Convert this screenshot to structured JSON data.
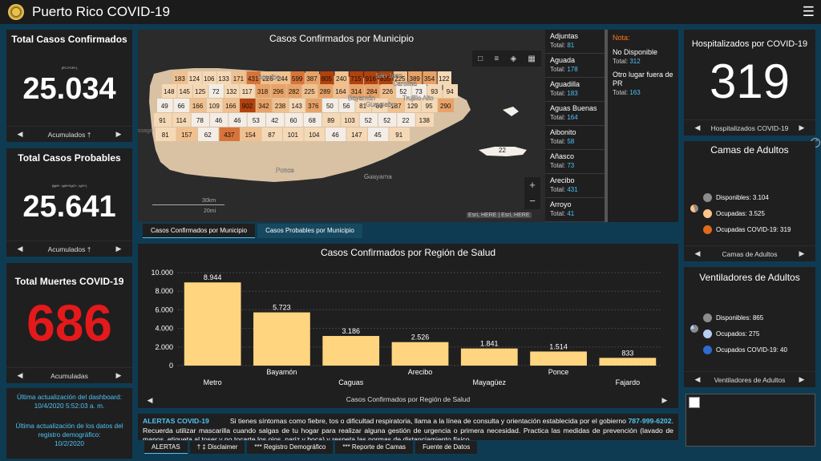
{
  "header": {
    "title": "Puerto Rico COVID-19",
    "seal_icon": "seal-icon",
    "menu_icon": "hamburger-menu-icon"
  },
  "kpis": {
    "confirmados": {
      "title": "Total Casos Confirmados",
      "sub": "(RT-PCR+)",
      "value": "25.034",
      "nav_label": "Acumulados †",
      "color": "#ffffff"
    },
    "probables": {
      "title": "Total Casos Probables",
      "sub": "(IgM+, IgM+/IgG+, IgG+)",
      "value": "25.641",
      "nav_label": "Acumulados †",
      "color": "#ffffff"
    },
    "muertes": {
      "title": "Total Muertes COVID-19",
      "value": "686",
      "nav_label": "Acumuladas",
      "color": "#e4191b"
    }
  },
  "update": {
    "dashboard_label": "Última actualización del dashboard:",
    "dashboard_date": "10/4/2020 5:52:03 a. m.",
    "registry_label": "Última actualización de los datos del registro demográfico:",
    "registry_date": "10/2/2020"
  },
  "map": {
    "title": "Casos Confirmados por Municipio",
    "attribution": "Esri, HERE | Esri, HERE",
    "scale_km": "30km",
    "scale_mi": "20mi",
    "ghost_text": "ssage",
    "place_labels": [
      "San Juan",
      "Carolina",
      "Bayamón",
      "Guaynabo",
      "Trujillo Alto",
      "Arecibo",
      "Ponce",
      "Guayama"
    ],
    "region_values": [
      "183",
      "124",
      "106",
      "133",
      "171",
      "431",
      "226",
      "244",
      "599",
      "387",
      "805",
      "240",
      "715",
      "916",
      "835",
      "225",
      "389",
      "354",
      "122",
      "148",
      "145",
      "125",
      "72",
      "132",
      "117",
      "318",
      "296",
      "282",
      "225",
      "289",
      "164",
      "314",
      "284",
      "226",
      "52",
      "73",
      "93",
      "94",
      "49",
      "66",
      "166",
      "109",
      "166",
      "902",
      "342",
      "238",
      "143",
      "376",
      "50",
      "56",
      "81",
      "89",
      "187",
      "129",
      "95",
      "290",
      "91",
      "114",
      "78",
      "46",
      "46",
      "53",
      "42",
      "60",
      "68",
      "89",
      "103",
      "52",
      "52",
      "22",
      "138",
      "81",
      "157",
      "62",
      "437",
      "154",
      "87",
      "101",
      "104",
      "46",
      "147",
      "45",
      "91"
    ]
  },
  "municipios": [
    {
      "name": "Adjuntas",
      "total": "81"
    },
    {
      "name": "Aguada",
      "total": "178"
    },
    {
      "name": "Aguadilla",
      "total": "183"
    },
    {
      "name": "Aguas Buenas",
      "total": "164"
    },
    {
      "name": "Aibonito",
      "total": "58"
    },
    {
      "name": "Añasco",
      "total": "73"
    },
    {
      "name": "Arecibo",
      "total": "431"
    },
    {
      "name": "Arroyo",
      "total": "41"
    }
  ],
  "total_prefix": "Total:",
  "nota": {
    "title": "Nota:",
    "items": [
      {
        "label": "No Disponible",
        "total": "312"
      },
      {
        "label": "Otro lugar fuera de PR",
        "total": "163"
      }
    ]
  },
  "map_tabs": [
    "Casos Confirmados por Municipio",
    "Casos Probables por Municipio"
  ],
  "chart_data": {
    "type": "bar",
    "title": "Casos Confirmados por Región de Salud",
    "xlabel": "Casos Confirmados por Región de Salud",
    "categories": [
      "Metro",
      "Bayamón",
      "Caguas",
      "Arecibo",
      "Mayagüez",
      "Ponce",
      "Fajardo"
    ],
    "values": [
      8944,
      5723,
      3186,
      2526,
      1841,
      1514,
      833
    ],
    "value_labels": [
      "8.944",
      "5.723",
      "3.186",
      "2.526",
      "1.841",
      "1.514",
      "833"
    ],
    "yticks": [
      "0",
      "2.000",
      "4.000",
      "6.000",
      "8.000",
      "10.000"
    ],
    "ylim": [
      0,
      10000
    ],
    "grid": true,
    "bar_color": "#ffd580"
  },
  "hospitalizados": {
    "title": "Hospitalizados por COVID-19",
    "value": "319",
    "nav_label": "Hospitalizados COVID-19"
  },
  "camas": {
    "title": "Camas de Adultos",
    "nav_label": "Camas de Adultos",
    "legend": [
      {
        "label": "Disponibles:",
        "value": "3.104",
        "color": "#8c8c8c"
      },
      {
        "label": "Ocupadas:",
        "value": "3.525",
        "color": "#ffc48a"
      },
      {
        "label": "Ocupadas COVID-19:",
        "value": "319",
        "color": "#e06a1b"
      }
    ]
  },
  "ventiladores": {
    "title": "Ventiladores de Adultos",
    "nav_label": "Ventiladores de Adultos",
    "legend": [
      {
        "label": "Disponibles:",
        "value": "865",
        "color": "#8c8c8c"
      },
      {
        "label": "Ocupados:",
        "value": "275",
        "color": "#b9cdf2"
      },
      {
        "label": "Ocupados COVID-19:",
        "value": "40",
        "color": "#2f6bd0"
      }
    ]
  },
  "alert": {
    "label": "ALERTAS COVID-19",
    "text_before": "Si tienes síntomas como fiebre, tos o dificultad respiratoria, llama a la línea de consulta y orientación establecida por el gobierno",
    "phone": "787-999-6202",
    "text_after": ". Recuerda utilizar mascarilla cuando salgas de tu hogar para realizar alguna gestión de urgencia o primera necesidad. Practica las medidas de prevención (lavado de manos, etiqueta al toser y no tocarte los ojos, nariz y boca) y respeta las normas de distanciamiento físico."
  },
  "bottom_tabs": [
    "ALERTAS",
    "† ‡ Disclaimer",
    "*** Registro Demográfico",
    "*** Reporte de Camas",
    "Fuente de Datos"
  ]
}
